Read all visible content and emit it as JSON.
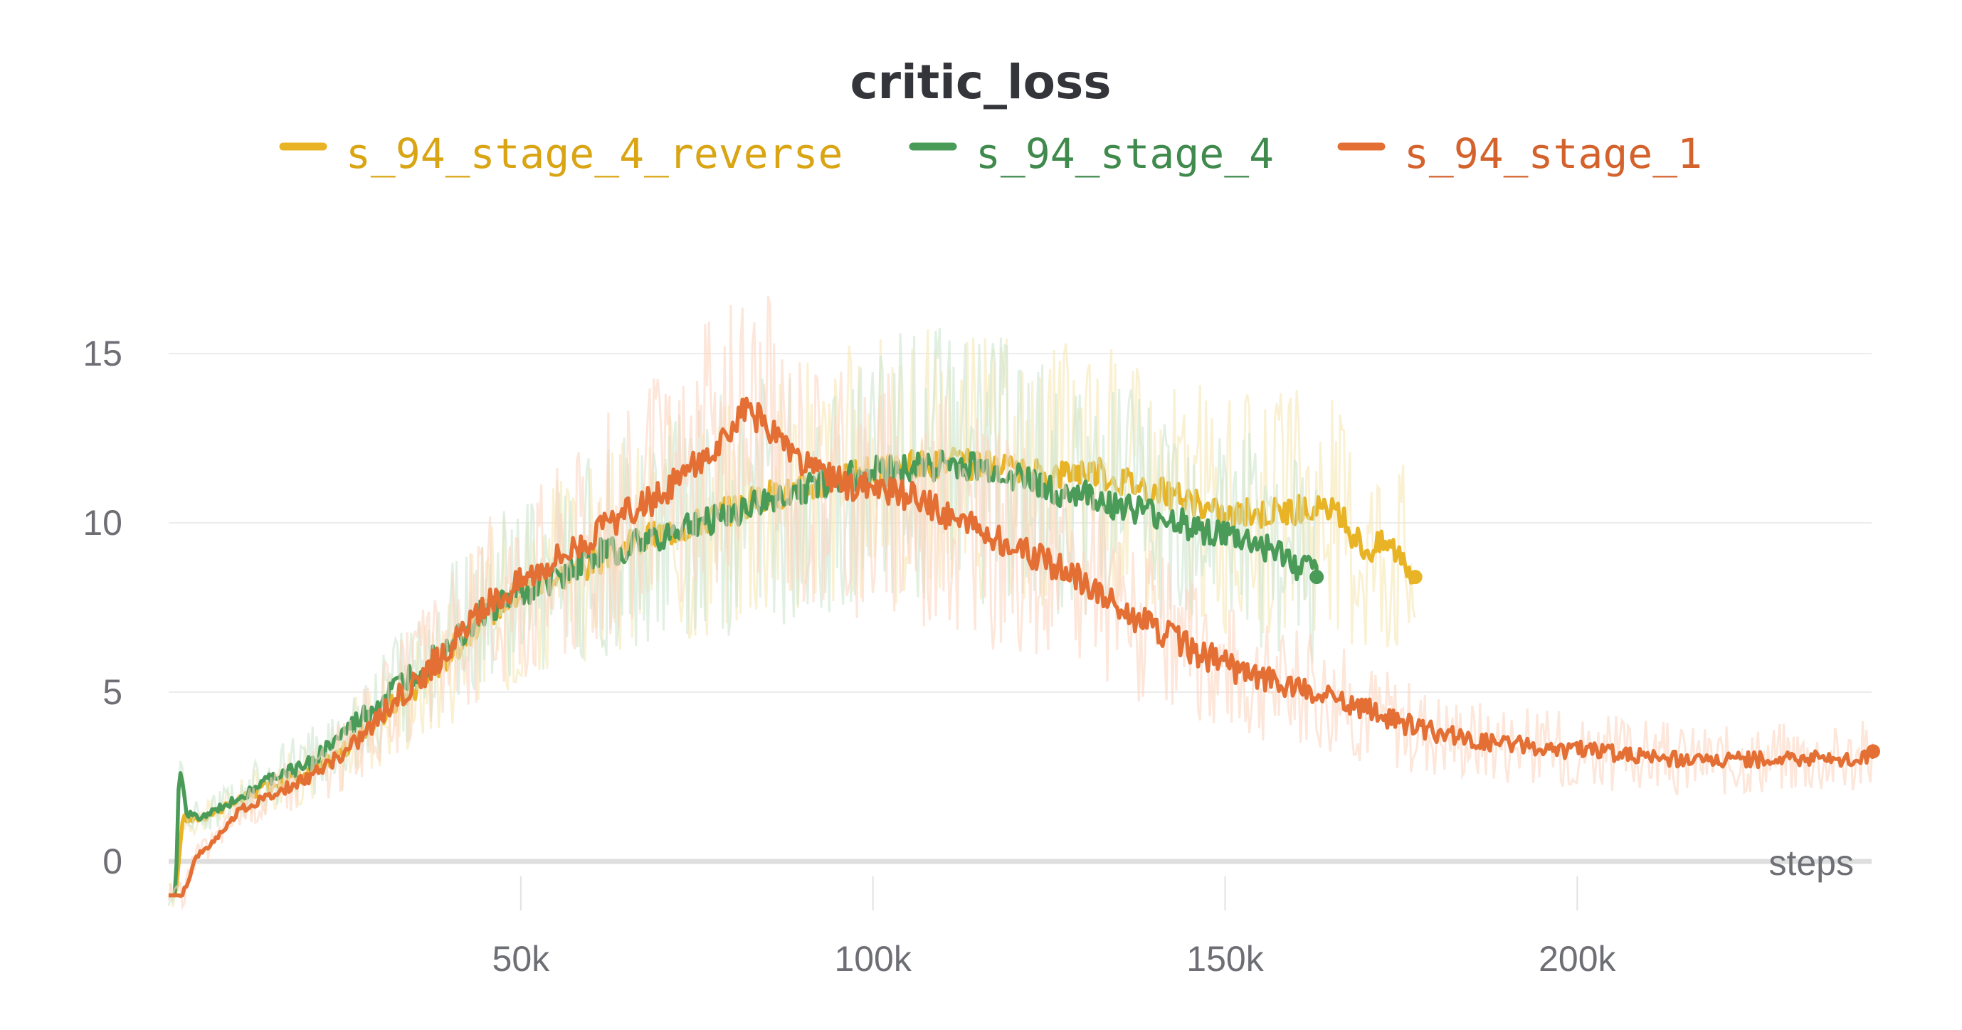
{
  "chart_data": {
    "type": "line",
    "title": "critic_loss",
    "xlabel": "steps",
    "ylabel": "",
    "xlim": [
      0,
      242000
    ],
    "ylim": [
      -1,
      15.5
    ],
    "grid": true,
    "legend_position": "top",
    "x_ticks": [
      {
        "value": 50000,
        "label": "50k"
      },
      {
        "value": 100000,
        "label": "100k"
      },
      {
        "value": 150000,
        "label": "150k"
      },
      {
        "value": 200000,
        "label": "200k"
      }
    ],
    "y_ticks": [
      {
        "value": 0,
        "label": "0"
      },
      {
        "value": 5,
        "label": "5"
      },
      {
        "value": 10,
        "label": "10"
      },
      {
        "value": 15,
        "label": "15"
      }
    ],
    "series": [
      {
        "name": "s_94_stage_4_reverse",
        "color": "#e8b425",
        "label_color": "#d9a514",
        "x": [
          0,
          1000,
          2000,
          3000,
          5000,
          10000,
          15000,
          20000,
          25000,
          30000,
          35000,
          40000,
          45000,
          50000,
          55000,
          60000,
          65000,
          70000,
          75000,
          80000,
          85000,
          90000,
          95000,
          100000,
          105000,
          110000,
          115000,
          120000,
          125000,
          130000,
          135000,
          140000,
          145000,
          150000,
          155000,
          160000,
          165000,
          167000,
          170000,
          173000,
          175000,
          177000
        ],
        "y": [
          -1,
          -1,
          1.3,
          1.2,
          1.3,
          1.8,
          2.3,
          2.6,
          3.3,
          4.3,
          5.1,
          6.2,
          7.3,
          8.0,
          8.4,
          8.8,
          9.3,
          9.7,
          10.0,
          10.4,
          10.8,
          11.0,
          11.3,
          11.5,
          11.7,
          11.8,
          11.7,
          11.5,
          11.4,
          11.6,
          11.3,
          11.0,
          10.6,
          10.2,
          10.3,
          10.4,
          10.3,
          10.0,
          9.2,
          9.4,
          9.1,
          8.4
        ]
      },
      {
        "name": "s_94_stage_4",
        "color": "#4a9a58",
        "label_color": "#3f8a4c",
        "x": [
          0,
          1000,
          1500,
          2500,
          5000,
          10000,
          15000,
          20000,
          25000,
          30000,
          35000,
          40000,
          45000,
          50000,
          55000,
          60000,
          65000,
          70000,
          75000,
          80000,
          85000,
          90000,
          95000,
          100000,
          105000,
          110000,
          115000,
          120000,
          125000,
          130000,
          135000,
          140000,
          145000,
          150000,
          155000,
          160000,
          163000
        ],
        "y": [
          -1,
          -1,
          2.9,
          1.4,
          1.3,
          1.9,
          2.5,
          2.9,
          3.8,
          4.7,
          5.6,
          6.5,
          7.4,
          7.9,
          8.4,
          9.0,
          9.3,
          9.6,
          10.0,
          10.3,
          10.6,
          11.0,
          11.3,
          11.5,
          11.6,
          11.7,
          11.6,
          11.4,
          11.0,
          10.8,
          10.5,
          10.2,
          9.9,
          9.6,
          9.3,
          8.8,
          8.4
        ]
      },
      {
        "name": "s_94_stage_1",
        "color": "#e46f34",
        "label_color": "#d4622c",
        "x": [
          0,
          2000,
          4000,
          5000,
          8000,
          10000,
          15000,
          20000,
          25000,
          30000,
          35000,
          40000,
          45000,
          50000,
          55000,
          60000,
          65000,
          70000,
          75000,
          80000,
          82000,
          84000,
          85000,
          90000,
          95000,
          100000,
          105000,
          110000,
          115000,
          120000,
          125000,
          130000,
          135000,
          140000,
          145000,
          150000,
          155000,
          160000,
          165000,
          170000,
          175000,
          180000,
          185000,
          190000,
          195000,
          200000,
          205000,
          210000,
          215000,
          220000,
          225000,
          230000,
          235000,
          240000,
          242000
        ],
        "y": [
          -1,
          -1,
          0.2,
          0.3,
          1.0,
          1.5,
          2.0,
          2.5,
          3.2,
          4.3,
          5.3,
          6.3,
          7.5,
          8.3,
          9.0,
          9.6,
          10.3,
          10.8,
          11.8,
          12.5,
          13.5,
          13.0,
          12.8,
          11.7,
          11.2,
          11.0,
          10.8,
          10.3,
          9.8,
          9.3,
          8.8,
          8.3,
          7.5,
          6.9,
          6.3,
          5.8,
          5.4,
          5.1,
          4.8,
          4.5,
          4.1,
          3.8,
          3.6,
          3.5,
          3.3,
          3.3,
          3.2,
          3.1,
          3.0,
          3.0,
          3.0,
          3.1,
          3.0,
          3.0,
          3.25
        ]
      }
    ]
  }
}
